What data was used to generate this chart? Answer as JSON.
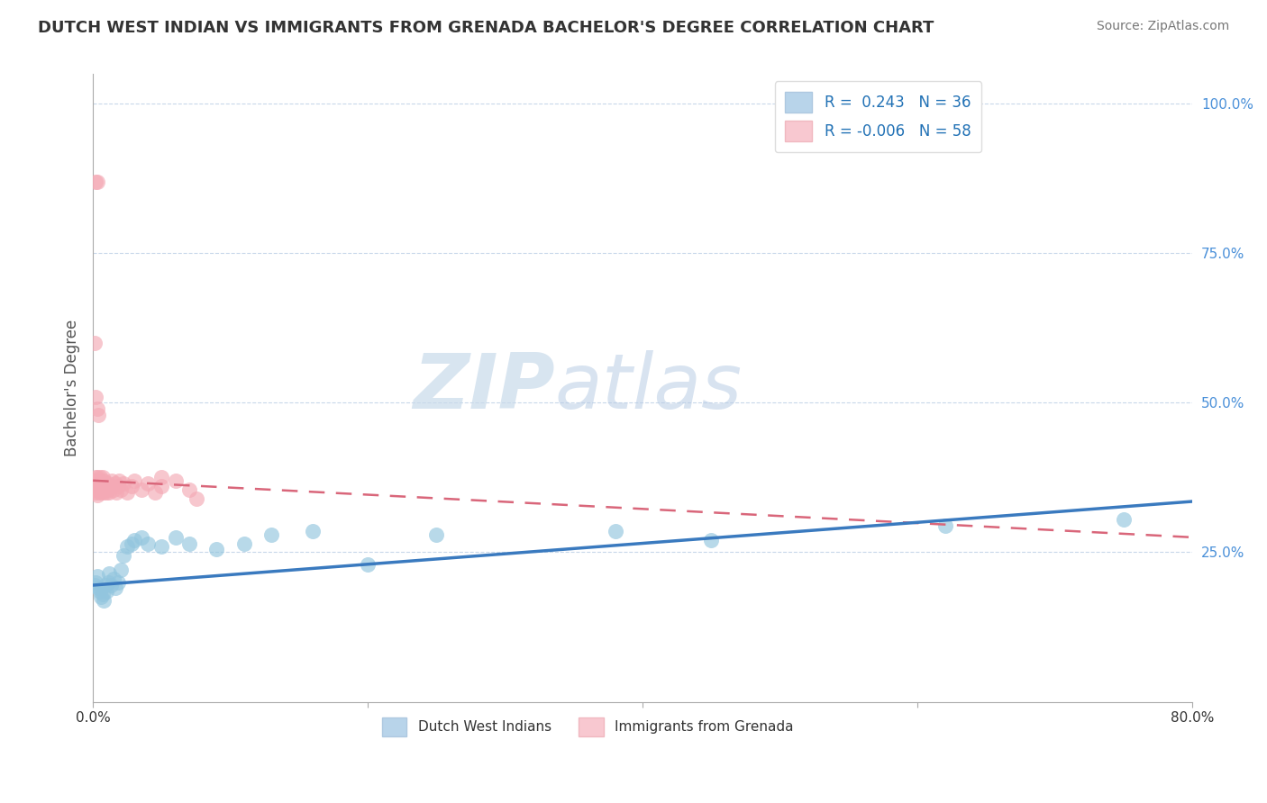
{
  "title": "DUTCH WEST INDIAN VS IMMIGRANTS FROM GRENADA BACHELOR'S DEGREE CORRELATION CHART",
  "source": "Source: ZipAtlas.com",
  "ylabel": "Bachelor's Degree",
  "watermark_zip": "ZIP",
  "watermark_atlas": "atlas",
  "legend_label1": "Dutch West Indians",
  "legend_label2": "Immigrants from Grenada",
  "blue_color": "#92c5de",
  "pink_color": "#f4a9b5",
  "blue_line_color": "#3a7abf",
  "pink_line_color": "#d9667a",
  "right_tick_color": "#4a90d9",
  "grid_color": "#c8d8ea",
  "background": "#ffffff",
  "blue_scatter_x": [
    0.001,
    0.002,
    0.003,
    0.004,
    0.005,
    0.006,
    0.007,
    0.008,
    0.009,
    0.01,
    0.011,
    0.012,
    0.013,
    0.015,
    0.016,
    0.018,
    0.02,
    0.022,
    0.025,
    0.028,
    0.03,
    0.035,
    0.04,
    0.05,
    0.06,
    0.07,
    0.09,
    0.11,
    0.13,
    0.16,
    0.2,
    0.25,
    0.38,
    0.45,
    0.62,
    0.75
  ],
  "blue_scatter_y": [
    0.195,
    0.2,
    0.21,
    0.19,
    0.185,
    0.175,
    0.18,
    0.17,
    0.195,
    0.185,
    0.2,
    0.215,
    0.195,
    0.205,
    0.19,
    0.2,
    0.22,
    0.245,
    0.26,
    0.265,
    0.27,
    0.275,
    0.265,
    0.26,
    0.275,
    0.265,
    0.255,
    0.265,
    0.28,
    0.285,
    0.23,
    0.28,
    0.285,
    0.27,
    0.295,
    0.305
  ],
  "pink_scatter_x": [
    0.001,
    0.001,
    0.001,
    0.002,
    0.002,
    0.002,
    0.003,
    0.003,
    0.003,
    0.003,
    0.004,
    0.004,
    0.004,
    0.005,
    0.005,
    0.005,
    0.006,
    0.006,
    0.006,
    0.007,
    0.007,
    0.007,
    0.008,
    0.008,
    0.008,
    0.009,
    0.009,
    0.01,
    0.01,
    0.011,
    0.011,
    0.012,
    0.013,
    0.014,
    0.015,
    0.016,
    0.017,
    0.018,
    0.019,
    0.02,
    0.022,
    0.025,
    0.028,
    0.03,
    0.035,
    0.04,
    0.045,
    0.05,
    0.06,
    0.07,
    0.001,
    0.002,
    0.003,
    0.004,
    0.05,
    0.075,
    0.002,
    0.003
  ],
  "pink_scatter_y": [
    0.35,
    0.36,
    0.37,
    0.355,
    0.365,
    0.375,
    0.345,
    0.355,
    0.365,
    0.375,
    0.35,
    0.36,
    0.37,
    0.355,
    0.365,
    0.375,
    0.35,
    0.36,
    0.37,
    0.355,
    0.365,
    0.375,
    0.35,
    0.36,
    0.37,
    0.355,
    0.365,
    0.35,
    0.36,
    0.355,
    0.365,
    0.35,
    0.36,
    0.37,
    0.355,
    0.365,
    0.35,
    0.36,
    0.37,
    0.355,
    0.365,
    0.35,
    0.36,
    0.37,
    0.355,
    0.365,
    0.35,
    0.36,
    0.37,
    0.355,
    0.6,
    0.51,
    0.49,
    0.48,
    0.375,
    0.34,
    0.87,
    0.87
  ],
  "xlim": [
    0.0,
    0.8
  ],
  "ylim": [
    0.0,
    1.05
  ],
  "xticks": [
    0.0,
    0.2,
    0.4,
    0.6,
    0.8
  ],
  "xtick_labels": [
    "0.0%",
    "",
    "",
    "",
    "80.0%"
  ],
  "yticks_right": [
    0.25,
    0.5,
    0.75,
    1.0
  ],
  "ytick_right_labels": [
    "25.0%",
    "50.0%",
    "75.0%",
    "100.0%"
  ],
  "title_fontsize": 13,
  "source_fontsize": 10,
  "blue_trend_x0": 0.0,
  "blue_trend_y0": 0.195,
  "blue_trend_x1": 0.8,
  "blue_trend_y1": 0.335,
  "pink_trend_x0": 0.0,
  "pink_trend_y0": 0.37,
  "pink_trend_x1": 0.8,
  "pink_trend_y1": 0.275
}
